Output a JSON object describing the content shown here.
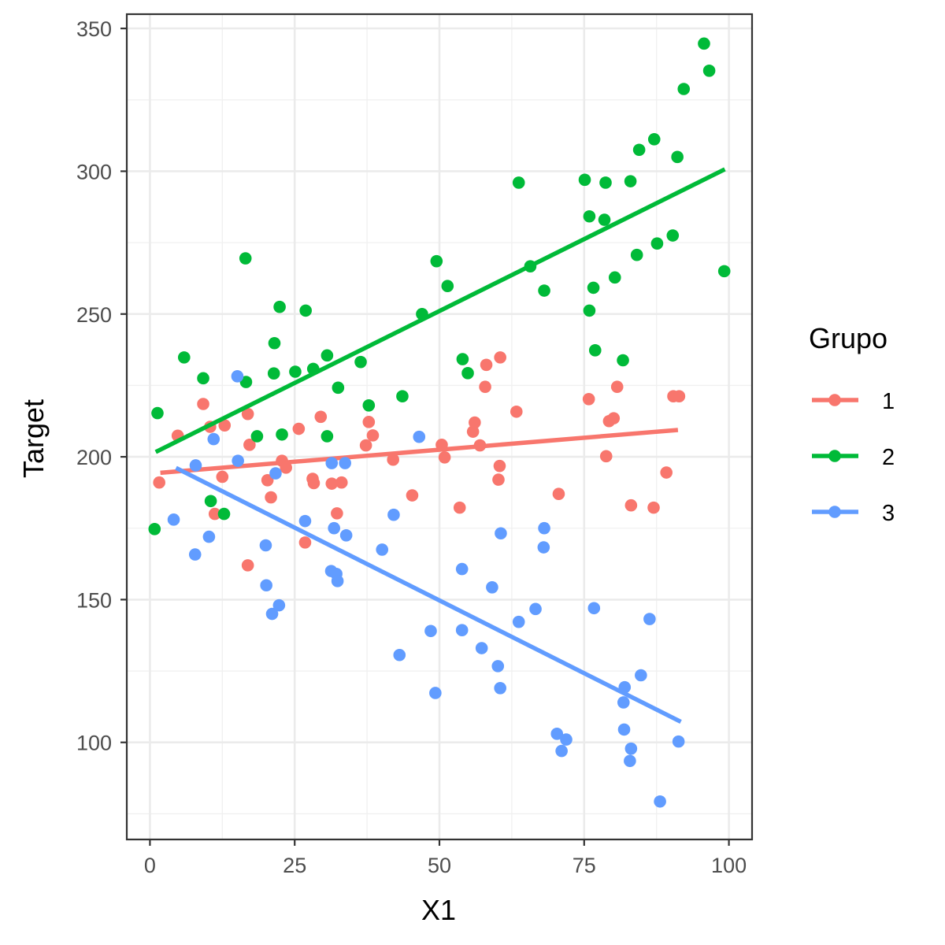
{
  "chart_data": {
    "type": "scatter",
    "xlabel": "X1",
    "ylabel": "Target",
    "xlim": [
      -4,
      104
    ],
    "ylim": [
      66,
      355
    ],
    "x_ticks": [
      0,
      25,
      50,
      75,
      100
    ],
    "y_ticks": [
      100,
      150,
      200,
      250,
      300,
      350
    ],
    "x_tick_labels": [
      "0",
      "25",
      "50",
      "75",
      "100"
    ],
    "y_tick_labels": [
      "100",
      "150",
      "200",
      "250",
      "300",
      "350"
    ],
    "grid": true,
    "legend": {
      "title": "Grupo",
      "position": "right"
    },
    "series": [
      {
        "name": "1",
        "color": "#F8766D",
        "trend": {
          "x": [
            1.8,
            91.2
          ],
          "y": [
            194.4,
            209.4
          ]
        },
        "points": [
          [
            1.6,
            191
          ],
          [
            4.8,
            207.4
          ],
          [
            9.2,
            218.5
          ],
          [
            10.4,
            210.5
          ],
          [
            11.2,
            180
          ],
          [
            12.5,
            193
          ],
          [
            12.9,
            211
          ],
          [
            16.9,
            215
          ],
          [
            17.2,
            204.2
          ],
          [
            16.9,
            162
          ],
          [
            20.3,
            191.8
          ],
          [
            20.9,
            185.8
          ],
          [
            22.8,
            198.6
          ],
          [
            23.5,
            196.2
          ],
          [
            25.7,
            209.8
          ],
          [
            26.8,
            170
          ],
          [
            28.1,
            192.3
          ],
          [
            28.3,
            190.8
          ],
          [
            29.5,
            214
          ],
          [
            31.4,
            190.6
          ],
          [
            32.3,
            180.2
          ],
          [
            33.1,
            191
          ],
          [
            37.3,
            204
          ],
          [
            37.8,
            212.2
          ],
          [
            38.5,
            207.5
          ],
          [
            42,
            199
          ],
          [
            45.3,
            186.5
          ],
          [
            50.4,
            204.2
          ],
          [
            50.9,
            199.8
          ],
          [
            53.5,
            182.2
          ],
          [
            55.8,
            208.8
          ],
          [
            56.1,
            212
          ],
          [
            57,
            204
          ],
          [
            57.9,
            224.5
          ],
          [
            58.1,
            232.2
          ],
          [
            60.2,
            192
          ],
          [
            60.4,
            196.8
          ],
          [
            60.5,
            234.8
          ],
          [
            63.3,
            215.8
          ],
          [
            70.6,
            187
          ],
          [
            75.8,
            220.2
          ],
          [
            78.8,
            200.2
          ],
          [
            79.3,
            212.5
          ],
          [
            80.1,
            213.5
          ],
          [
            80.7,
            224.5
          ],
          [
            83.1,
            183
          ],
          [
            87,
            182.2
          ],
          [
            89.2,
            194.5
          ],
          [
            90.4,
            221.2
          ],
          [
            91.4,
            221.2
          ]
        ]
      },
      {
        "name": "2",
        "color": "#00BA38",
        "trend": {
          "x": [
            1.0,
            99.3
          ],
          "y": [
            201.7,
            300.7
          ]
        },
        "points": [
          [
            0.8,
            174.7
          ],
          [
            1.3,
            215.3
          ],
          [
            5.9,
            234.8
          ],
          [
            9.2,
            227.5
          ],
          [
            10.5,
            184.5
          ],
          [
            12.8,
            180
          ],
          [
            16.5,
            269.5
          ],
          [
            16.6,
            226.2
          ],
          [
            18.5,
            207.2
          ],
          [
            21.4,
            229.2
          ],
          [
            21.5,
            239.8
          ],
          [
            22.4,
            252.5
          ],
          [
            22.8,
            207.8
          ],
          [
            25.1,
            229.8
          ],
          [
            26.9,
            251.2
          ],
          [
            28.2,
            230.8
          ],
          [
            30.6,
            235.5
          ],
          [
            30.6,
            207.2
          ],
          [
            32.5,
            224.2
          ],
          [
            36.4,
            233.2
          ],
          [
            37.8,
            218
          ],
          [
            43.6,
            221.2
          ],
          [
            47,
            250
          ],
          [
            49.5,
            268.5
          ],
          [
            51.4,
            259.8
          ],
          [
            54,
            234.2
          ],
          [
            54.9,
            229.3
          ],
          [
            63.7,
            296
          ],
          [
            65.7,
            266.7
          ],
          [
            68.1,
            258.2
          ],
          [
            75.1,
            297
          ],
          [
            75.9,
            284.2
          ],
          [
            75.9,
            251.2
          ],
          [
            76.6,
            259.2
          ],
          [
            76.9,
            237.3
          ],
          [
            78.5,
            283
          ],
          [
            78.7,
            296
          ],
          [
            80.3,
            262.8
          ],
          [
            81.7,
            233.8
          ],
          [
            83,
            296.5
          ],
          [
            84.1,
            270.7
          ],
          [
            84.5,
            307.5
          ],
          [
            87.1,
            311.2
          ],
          [
            87.6,
            274.7
          ],
          [
            90.3,
            277.5
          ],
          [
            91.1,
            305
          ],
          [
            92.2,
            328.8
          ],
          [
            95.7,
            344.7
          ],
          [
            96.6,
            335.2
          ],
          [
            99.2,
            265
          ]
        ]
      },
      {
        "name": "3",
        "color": "#619CFF",
        "trend": {
          "x": [
            4.5,
            91.7
          ],
          "y": [
            196.1,
            107.2
          ]
        },
        "points": [
          [
            4.1,
            178
          ],
          [
            7.8,
            165.8
          ],
          [
            7.9,
            197
          ],
          [
            10.2,
            172
          ],
          [
            11,
            206.2
          ],
          [
            15.1,
            228.2
          ],
          [
            15.2,
            198.6
          ],
          [
            20,
            169
          ],
          [
            20.1,
            155
          ],
          [
            21.1,
            145
          ],
          [
            21.7,
            194.2
          ],
          [
            22.3,
            148
          ],
          [
            26.8,
            177.5
          ],
          [
            31.3,
            160
          ],
          [
            31.4,
            197.8
          ],
          [
            31.8,
            175
          ],
          [
            32.2,
            159
          ],
          [
            32.4,
            156.5
          ],
          [
            33.7,
            197.8
          ],
          [
            33.9,
            172.5
          ],
          [
            40.1,
            167.5
          ],
          [
            42.1,
            179.7
          ],
          [
            43.1,
            130.6
          ],
          [
            46.5,
            207
          ],
          [
            48.5,
            139
          ],
          [
            49.3,
            117.3
          ],
          [
            53.9,
            160.7
          ],
          [
            53.9,
            139.3
          ],
          [
            57.3,
            133
          ],
          [
            59.1,
            154.3
          ],
          [
            60.1,
            126.7
          ],
          [
            60.5,
            119
          ],
          [
            60.6,
            173.2
          ],
          [
            63.7,
            142.2
          ],
          [
            66.6,
            146.7
          ],
          [
            68,
            168.3
          ],
          [
            68.1,
            175
          ],
          [
            70.3,
            103
          ],
          [
            71.1,
            97
          ],
          [
            71.9,
            101
          ],
          [
            76.7,
            147
          ],
          [
            81.8,
            114
          ],
          [
            81.9,
            104.5
          ],
          [
            82,
            119.3
          ],
          [
            82.9,
            93.5
          ],
          [
            83.1,
            97.8
          ],
          [
            84.8,
            123.5
          ],
          [
            86.3,
            143.2
          ],
          [
            88.1,
            79.3
          ],
          [
            91.3,
            100.3
          ]
        ]
      }
    ]
  }
}
